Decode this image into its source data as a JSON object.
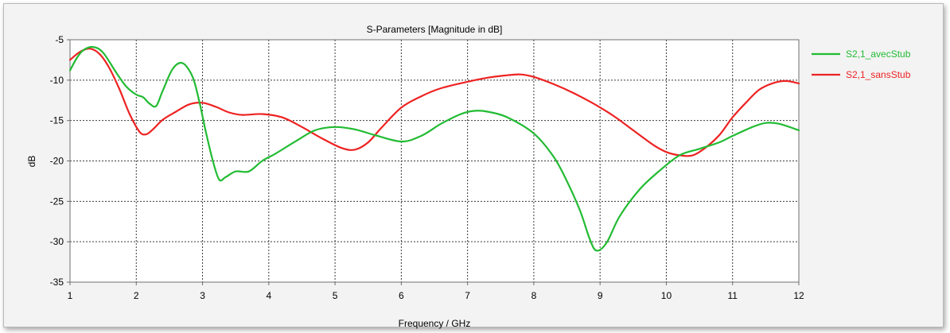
{
  "chart_data": {
    "type": "line",
    "title": "S-Parameters [Magnitude in dB]",
    "xlabel": "Frequency / GHz",
    "ylabel": "dB",
    "xlim": [
      1,
      12
    ],
    "ylim": [
      -35,
      -5
    ],
    "xticks": [
      1,
      2,
      3,
      4,
      5,
      6,
      7,
      8,
      9,
      10,
      11,
      12
    ],
    "yticks": [
      -5,
      -10,
      -15,
      -20,
      -25,
      -30,
      -35
    ],
    "grid": true,
    "legend_position": "right",
    "series": [
      {
        "name": "S2,1_avecStub",
        "color": "#22bb33",
        "x": [
          1.0,
          1.1,
          1.2,
          1.35,
          1.5,
          1.7,
          1.85,
          2.0,
          2.1,
          2.2,
          2.3,
          2.4,
          2.55,
          2.7,
          2.85,
          2.95,
          3.05,
          3.15,
          3.25,
          3.35,
          3.5,
          3.7,
          3.9,
          4.1,
          4.4,
          4.7,
          5.0,
          5.3,
          5.6,
          6.0,
          6.3,
          6.6,
          6.9,
          7.1,
          7.3,
          7.6,
          8.0,
          8.3,
          8.5,
          8.7,
          8.85,
          8.95,
          9.1,
          9.3,
          9.6,
          9.9,
          10.2,
          10.5,
          10.8,
          11.0,
          11.3,
          11.5,
          11.7,
          12.0
        ],
        "y": [
          -8.8,
          -7.3,
          -6.3,
          -5.9,
          -6.6,
          -9.1,
          -10.8,
          -11.8,
          -12.1,
          -12.9,
          -13.2,
          -11.3,
          -8.6,
          -7.9,
          -9.6,
          -12.6,
          -16.4,
          -19.8,
          -22.3,
          -22.0,
          -21.3,
          -21.3,
          -20.0,
          -19.1,
          -17.6,
          -16.2,
          -15.8,
          -16.1,
          -16.8,
          -17.6,
          -16.9,
          -15.4,
          -14.2,
          -13.8,
          -13.9,
          -14.6,
          -16.6,
          -19.5,
          -22.5,
          -26.2,
          -29.8,
          -31.1,
          -30.1,
          -26.8,
          -23.5,
          -21.2,
          -19.3,
          -18.5,
          -17.7,
          -16.9,
          -15.8,
          -15.3,
          -15.4,
          -16.2
        ]
      },
      {
        "name": "S2,1_sansStub",
        "color": "#ee2222",
        "x": [
          1.0,
          1.15,
          1.3,
          1.45,
          1.6,
          1.75,
          1.9,
          2.05,
          2.15,
          2.25,
          2.4,
          2.6,
          2.8,
          3.0,
          3.2,
          3.4,
          3.6,
          3.9,
          4.2,
          4.5,
          4.8,
          5.1,
          5.3,
          5.5,
          5.7,
          6.0,
          6.3,
          6.6,
          7.0,
          7.3,
          7.6,
          7.8,
          8.0,
          8.3,
          8.6,
          8.9,
          9.2,
          9.5,
          9.8,
          10.0,
          10.2,
          10.4,
          10.6,
          10.8,
          11.0,
          11.2,
          11.4,
          11.6,
          11.8,
          12.0
        ],
        "y": [
          -7.5,
          -6.5,
          -6.1,
          -6.8,
          -8.6,
          -11.2,
          -14.2,
          -16.4,
          -16.7,
          -16.1,
          -14.9,
          -13.9,
          -13.0,
          -12.8,
          -13.3,
          -14.0,
          -14.3,
          -14.2,
          -14.6,
          -15.8,
          -17.2,
          -18.4,
          -18.6,
          -17.7,
          -15.9,
          -13.4,
          -12.0,
          -11.0,
          -10.2,
          -9.7,
          -9.4,
          -9.3,
          -9.6,
          -10.5,
          -11.6,
          -12.9,
          -14.4,
          -16.2,
          -18.0,
          -18.9,
          -19.3,
          -19.3,
          -18.3,
          -16.8,
          -14.6,
          -12.8,
          -11.2,
          -10.4,
          -10.1,
          -10.4
        ]
      }
    ]
  }
}
